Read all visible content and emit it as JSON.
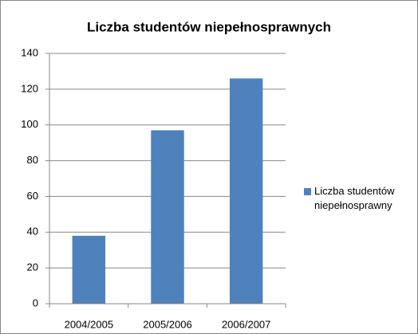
{
  "chart_data": {
    "type": "bar",
    "title": "Liczba studentów niepełnosprawnych",
    "categories": [
      "2004/2005",
      "2005/2006",
      "2006/2007"
    ],
    "series": [
      {
        "name": "Liczba studentów niepełnosprawny",
        "color": "#4f81bd",
        "values": [
          38,
          97,
          126
        ]
      }
    ],
    "ylim": [
      0,
      140
    ],
    "yticks": [
      0,
      20,
      40,
      60,
      80,
      100,
      120,
      140
    ],
    "grid": true,
    "legend": "right"
  }
}
